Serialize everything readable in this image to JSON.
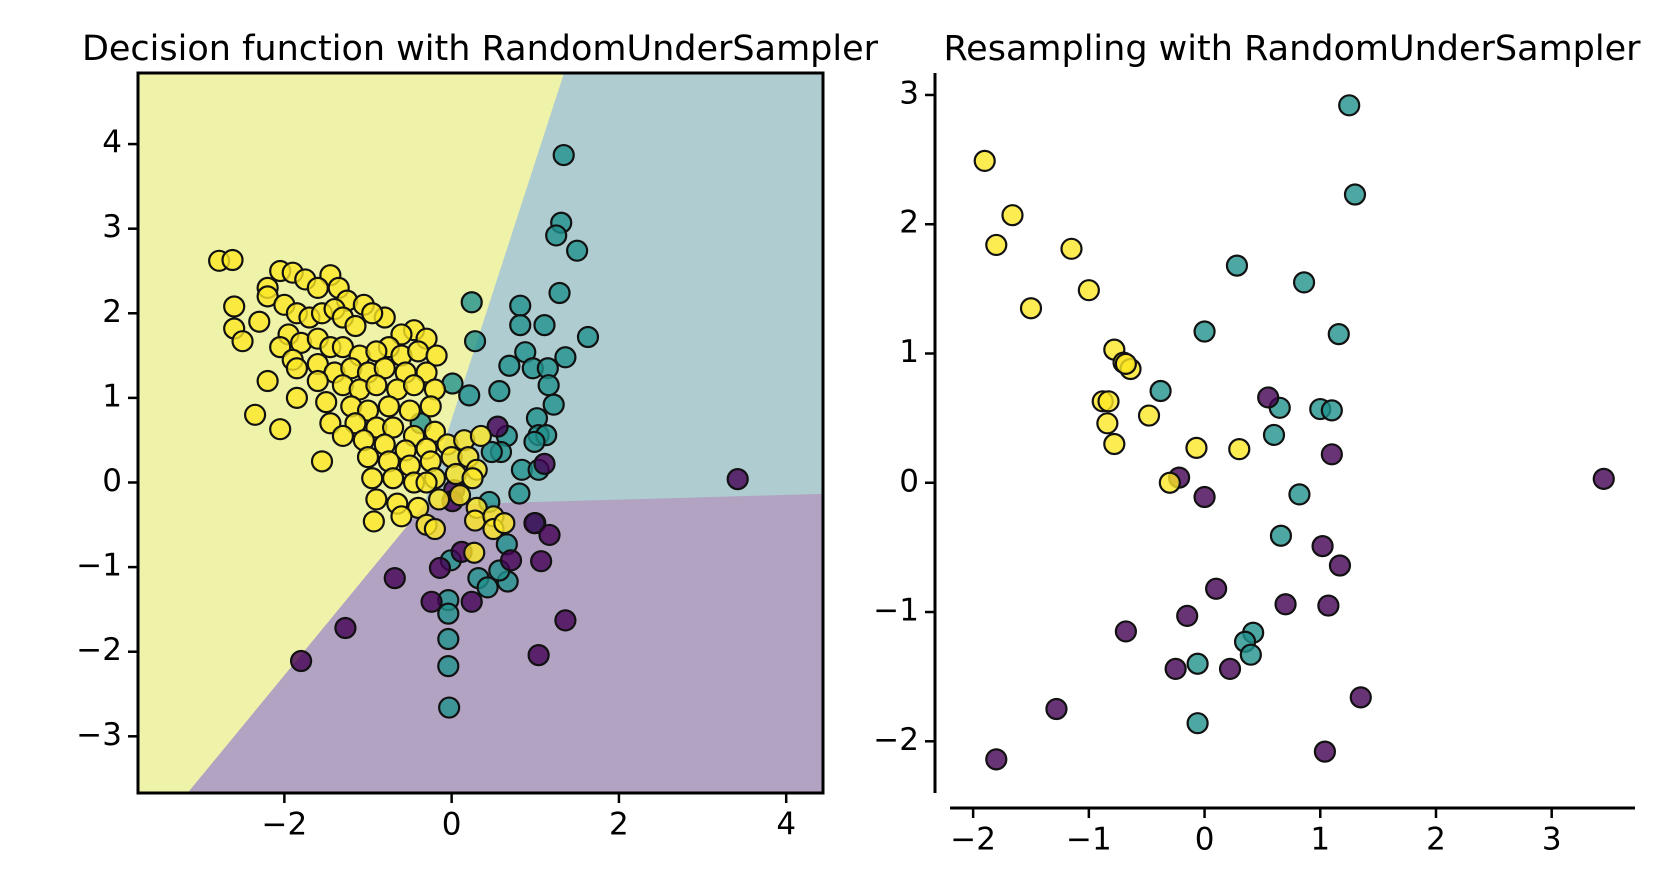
{
  "chart_data": [
    {
      "type": "scatter",
      "title": "Decision function with RandomUnderSampler",
      "frame": true,
      "xlim": [
        -3.75,
        4.44
      ],
      "ylim": [
        -3.67,
        4.84
      ],
      "xticks": [
        {
          "value": -2,
          "label": "−2"
        },
        0,
        2,
        4
      ],
      "yticks": [
        {
          "value": -3,
          "label": "−3"
        },
        {
          "value": -2,
          "label": "−2"
        },
        {
          "value": -1,
          "label": "−1"
        },
        0,
        1,
        2,
        3,
        4
      ],
      "regions": [
        {
          "color": "#eff3a9",
          "x": [
            -3.75,
            1.35,
            -0.33,
            -3.15,
            -3.75
          ],
          "y": [
            4.84,
            4.84,
            -0.28,
            -3.67,
            -3.67
          ]
        },
        {
          "color": "#afccd1",
          "x": [
            1.35,
            4.44,
            4.44,
            0.89,
            -0.33
          ],
          "y": [
            4.84,
            4.84,
            -0.14,
            -0.24,
            -0.28
          ]
        },
        {
          "color": "#b1a3c1",
          "x": [
            -0.33,
            0.89,
            4.44,
            4.44,
            -3.15
          ],
          "y": [
            -0.28,
            -0.24,
            -0.14,
            -3.67,
            -3.67
          ]
        }
      ],
      "series": [
        {
          "color": "#21918c",
          "x": [
            1.34,
            1.31,
            1.25,
            1.5,
            1.29,
            0.24,
            0.82,
            0.82,
            1.11,
            1.63,
            0.28,
            0.88,
            1.36,
            0.69,
            0.97,
            1.15,
            0.01,
            1.16,
            0.57,
            0.21,
            1.22,
            -0.37,
            1.02,
            1.04,
            0.66,
            1.13,
            0.99,
            0.59,
            0.48,
            0.84,
            1.04,
            0.81,
            0.45,
            1.0,
            0.66,
            0.32,
            0.43,
            0.67,
            -0.04,
            -0.04,
            -0.04,
            -0.04,
            -0.03,
            -0.01,
            0.57
          ],
          "values": [
            3.87,
            3.07,
            2.92,
            2.74,
            2.24,
            2.13,
            2.09,
            1.86,
            1.86,
            1.72,
            1.67,
            1.54,
            1.48,
            1.38,
            1.35,
            1.35,
            1.17,
            1.15,
            1.08,
            1.03,
            0.92,
            0.7,
            0.76,
            0.56,
            0.55,
            0.56,
            0.48,
            0.36,
            0.36,
            0.15,
            0.15,
            -0.13,
            -0.23,
            -0.48,
            -0.73,
            -1.13,
            -1.24,
            -1.17,
            -1.39,
            -1.55,
            -1.85,
            -2.17,
            -2.66,
            -0.92,
            -1.04
          ]
        },
        {
          "color": "#440154",
          "x": [
            3.42,
            0.55,
            1.11,
            0.03,
            0.01,
            0.99,
            1.17,
            0.12,
            0.71,
            1.07,
            -0.14,
            -0.68,
            -0.24,
            0.24,
            1.36,
            -1.27,
            1.04,
            -1.8
          ],
          "values": [
            0.04,
            0.66,
            0.22,
            -0.09,
            -0.22,
            -0.48,
            -0.62,
            -0.82,
            -0.92,
            -0.93,
            -1.01,
            -1.13,
            -1.41,
            -1.41,
            -1.63,
            -1.72,
            -2.04,
            -2.11
          ]
        },
        {
          "color": "#fde725",
          "x": [
            -2.78,
            -2.62,
            -2.6,
            -2.6,
            -2.5,
            -2.3,
            -2.2,
            -2.2,
            -2.05,
            -1.9,
            -1.75,
            -1.45,
            -1.6,
            -1.35,
            -1.25,
            -1.05,
            -0.8,
            -0.95,
            -2.0,
            -1.85,
            -1.7,
            -1.55,
            -1.4,
            -1.3,
            -1.15,
            -0.45,
            -0.3,
            -0.6,
            -0.75,
            -1.95,
            -1.8,
            -1.6,
            -1.45,
            -1.3,
            -1.1,
            -0.9,
            -0.6,
            -0.4,
            -0.18,
            -2.05,
            -1.9,
            -1.85,
            -1.6,
            -1.4,
            -1.2,
            -1.0,
            -0.8,
            -0.55,
            -0.3,
            -2.2,
            -1.6,
            -1.3,
            -1.1,
            -0.9,
            -0.65,
            -0.45,
            -0.2,
            -1.85,
            -1.5,
            -1.2,
            -1.0,
            -0.75,
            -0.5,
            -0.25,
            -2.35,
            -2.05,
            -1.45,
            -1.15,
            -0.9,
            -0.7,
            -0.45,
            -0.2,
            -1.3,
            -1.05,
            -0.8,
            -0.55,
            -0.3,
            -0.05,
            0.15,
            0.35,
            -1.0,
            -0.75,
            -0.5,
            -0.25,
            0.0,
            0.2,
            0.3,
            -1.55,
            -0.95,
            -0.7,
            -0.45,
            -0.2,
            0.05,
            0.25,
            -0.9,
            -0.65,
            -0.4,
            -0.15,
            0.1,
            0.3,
            -0.93,
            -0.6,
            -0.3,
            -0.2,
            0.28,
            0.5,
            0.5,
            0.27,
            0.63,
            -0.3
          ],
          "values": [
            2.62,
            2.63,
            2.08,
            1.82,
            1.67,
            1.9,
            2.3,
            2.2,
            2.5,
            2.48,
            2.4,
            2.45,
            2.3,
            2.3,
            2.15,
            2.1,
            1.95,
            2.0,
            2.1,
            2.0,
            1.95,
            2.0,
            2.05,
            1.95,
            1.85,
            1.8,
            1.7,
            1.75,
            1.6,
            1.75,
            1.65,
            1.7,
            1.6,
            1.6,
            1.5,
            1.55,
            1.5,
            1.55,
            1.5,
            1.6,
            1.45,
            1.35,
            1.4,
            1.3,
            1.35,
            1.3,
            1.35,
            1.3,
            1.3,
            1.2,
            1.2,
            1.15,
            1.1,
            1.15,
            1.1,
            1.15,
            1.1,
            1.0,
            0.95,
            0.9,
            0.85,
            0.9,
            0.85,
            0.9,
            0.8,
            0.63,
            0.7,
            0.7,
            0.65,
            0.65,
            0.55,
            0.6,
            0.55,
            0.5,
            0.45,
            0.38,
            0.4,
            0.45,
            0.5,
            0.55,
            0.3,
            0.25,
            0.2,
            0.25,
            0.3,
            0.3,
            0.15,
            0.25,
            0.05,
            0.05,
            0.0,
            0.05,
            0.1,
            0.05,
            -0.2,
            -0.25,
            -0.3,
            -0.2,
            -0.15,
            -0.3,
            -0.46,
            -0.4,
            -0.5,
            -0.55,
            -0.45,
            -0.4,
            -0.55,
            -0.83,
            -0.48,
            0.0
          ]
        }
      ]
    },
    {
      "type": "scatter",
      "title": "Resampling with RandomUnderSampler",
      "frame": false,
      "xlim": [
        -2.2,
        3.72
      ],
      "ylim": [
        -2.4,
        3.17
      ],
      "xticks": [
        {
          "value": -2,
          "label": "−2"
        },
        {
          "value": -1,
          "label": "−1"
        },
        0,
        1,
        2,
        3
      ],
      "yticks": [
        {
          "value": -2,
          "label": "−2"
        },
        {
          "value": -1,
          "label": "−1"
        },
        0,
        1,
        2,
        3
      ],
      "series": [
        {
          "color": "#21918c",
          "x": [
            1.25,
            1.3,
            0.28,
            0.86,
            1.16,
            0.0,
            -0.38,
            0.65,
            1.0,
            1.1,
            0.6,
            0.82,
            0.66,
            0.42,
            0.35,
            0.4,
            -0.06,
            -0.06
          ],
          "values": [
            2.92,
            2.23,
            1.68,
            1.55,
            1.15,
            1.17,
            0.71,
            0.58,
            0.57,
            0.56,
            0.37,
            -0.09,
            -0.41,
            -1.16,
            -1.23,
            -1.33,
            -1.4,
            -1.86
          ]
        },
        {
          "color": "#440154",
          "x": [
            3.45,
            0.55,
            1.1,
            -0.22,
            0.0,
            1.02,
            1.17,
            0.1,
            0.7,
            1.07,
            -0.15,
            -0.68,
            -0.25,
            0.22,
            1.35,
            -1.28,
            1.04,
            -1.8
          ],
          "values": [
            0.03,
            0.66,
            0.22,
            0.04,
            -0.11,
            -0.49,
            -0.64,
            -0.82,
            -0.94,
            -0.95,
            -1.03,
            -1.15,
            -1.44,
            -1.44,
            -1.66,
            -1.75,
            -2.08,
            -2.14
          ]
        },
        {
          "color": "#fde725",
          "x": [
            -1.9,
            -1.66,
            -1.8,
            -1.15,
            -1.0,
            -1.5,
            -0.78,
            -0.7,
            -0.64,
            -0.68,
            -0.88,
            -0.83,
            -0.84,
            -0.78,
            -0.48,
            -0.07,
            0.3,
            -0.3
          ],
          "values": [
            2.49,
            2.07,
            1.84,
            1.81,
            1.49,
            1.35,
            1.03,
            0.93,
            0.88,
            0.92,
            0.63,
            0.63,
            0.46,
            0.3,
            0.52,
            0.27,
            0.26,
            0.0
          ]
        }
      ]
    }
  ]
}
